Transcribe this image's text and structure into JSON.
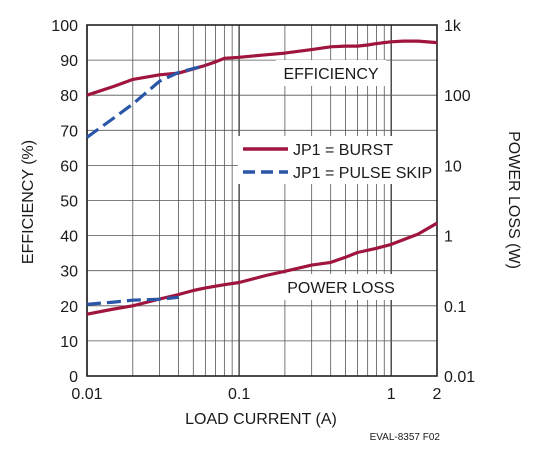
{
  "chart_data": {
    "type": "line",
    "xlabel": "LOAD CURRENT (A)",
    "ylabel_left": "EFFICIENCY (%)",
    "ylabel_right": "POWER LOSS (W)",
    "x_scale": "log",
    "xlim": [
      0.01,
      2
    ],
    "ylim_left": [
      0,
      100
    ],
    "ylim_right": [
      0.01,
      1000
    ],
    "y_right_scale": "log",
    "grid": true,
    "x_tick_labels": [
      "0.01",
      "0.1",
      "1",
      "2"
    ],
    "x_ticks": [
      0.01,
      0.1,
      1,
      2
    ],
    "y_left_ticks": [
      0,
      10,
      20,
      30,
      40,
      50,
      60,
      70,
      80,
      90,
      100
    ],
    "y_left_tick_labels": [
      "0",
      "10",
      "20",
      "30",
      "40",
      "50",
      "60",
      "70",
      "80",
      "90",
      "100"
    ],
    "y_right_ticks": [
      0.01,
      0.1,
      1,
      10,
      100,
      1000
    ],
    "y_right_tick_labels": [
      "0.01",
      "0.1",
      "1",
      "10",
      "100",
      "1k"
    ],
    "legend": {
      "placement": "right-middle",
      "entries": [
        {
          "label": "JP1 = BURST",
          "color": "#a0153e",
          "dash": "solid"
        },
        {
          "label": "JP1 = PULSE SKIP",
          "color": "#2a56a8",
          "dash": "dashed"
        }
      ]
    },
    "annotations": [
      "EFFICIENCY",
      "POWER LOSS"
    ],
    "figure_code": "EVAL-8357 F02",
    "series": [
      {
        "label": "JP1 = BURST",
        "quantity": "EFFICIENCY",
        "axis": "left",
        "color": "#a0153e",
        "dash": "solid",
        "x": [
          0.01,
          0.015,
          0.02,
          0.03,
          0.04,
          0.05,
          0.06,
          0.07,
          0.08,
          0.1,
          0.15,
          0.2,
          0.3,
          0.4,
          0.5,
          0.6,
          0.7,
          0.8,
          1.0,
          1.2,
          1.5,
          2.0
        ],
        "y": [
          80,
          82.5,
          84.5,
          85.8,
          86.3,
          87.5,
          88.5,
          89.5,
          90.5,
          90.8,
          91.5,
          92,
          93,
          93.8,
          94,
          94,
          94.3,
          94.7,
          95.2,
          95.4,
          95.4,
          95
        ]
      },
      {
        "label": "JP1 = PULSE SKIP",
        "quantity": "EFFICIENCY",
        "axis": "left",
        "color": "#2a56a8",
        "dash": "dashed",
        "x": [
          0.01,
          0.015,
          0.02,
          0.03,
          0.04,
          0.06
        ],
        "y": [
          68,
          73.5,
          77.5,
          84,
          86.5,
          88.5
        ]
      },
      {
        "label": "JP1 = BURST",
        "quantity": "POWER LOSS",
        "axis": "right",
        "color": "#a0153e",
        "dash": "solid",
        "x": [
          0.01,
          0.015,
          0.02,
          0.03,
          0.04,
          0.05,
          0.06,
          0.08,
          0.1,
          0.15,
          0.2,
          0.3,
          0.4,
          0.5,
          0.6,
          0.8,
          1.0,
          1.5,
          2.0
        ],
        "y": [
          0.076,
          0.09,
          0.1,
          0.125,
          0.145,
          0.165,
          0.18,
          0.2,
          0.215,
          0.27,
          0.31,
          0.38,
          0.415,
          0.49,
          0.575,
          0.66,
          0.75,
          1.05,
          1.5
        ]
      },
      {
        "label": "JP1 = PULSE SKIP",
        "quantity": "POWER LOSS",
        "axis": "right",
        "color": "#2a56a8",
        "dash": "dashed",
        "x": [
          0.01,
          0.015,
          0.02,
          0.03,
          0.04
        ],
        "y": [
          0.105,
          0.113,
          0.12,
          0.124,
          0.132
        ]
      }
    ]
  }
}
